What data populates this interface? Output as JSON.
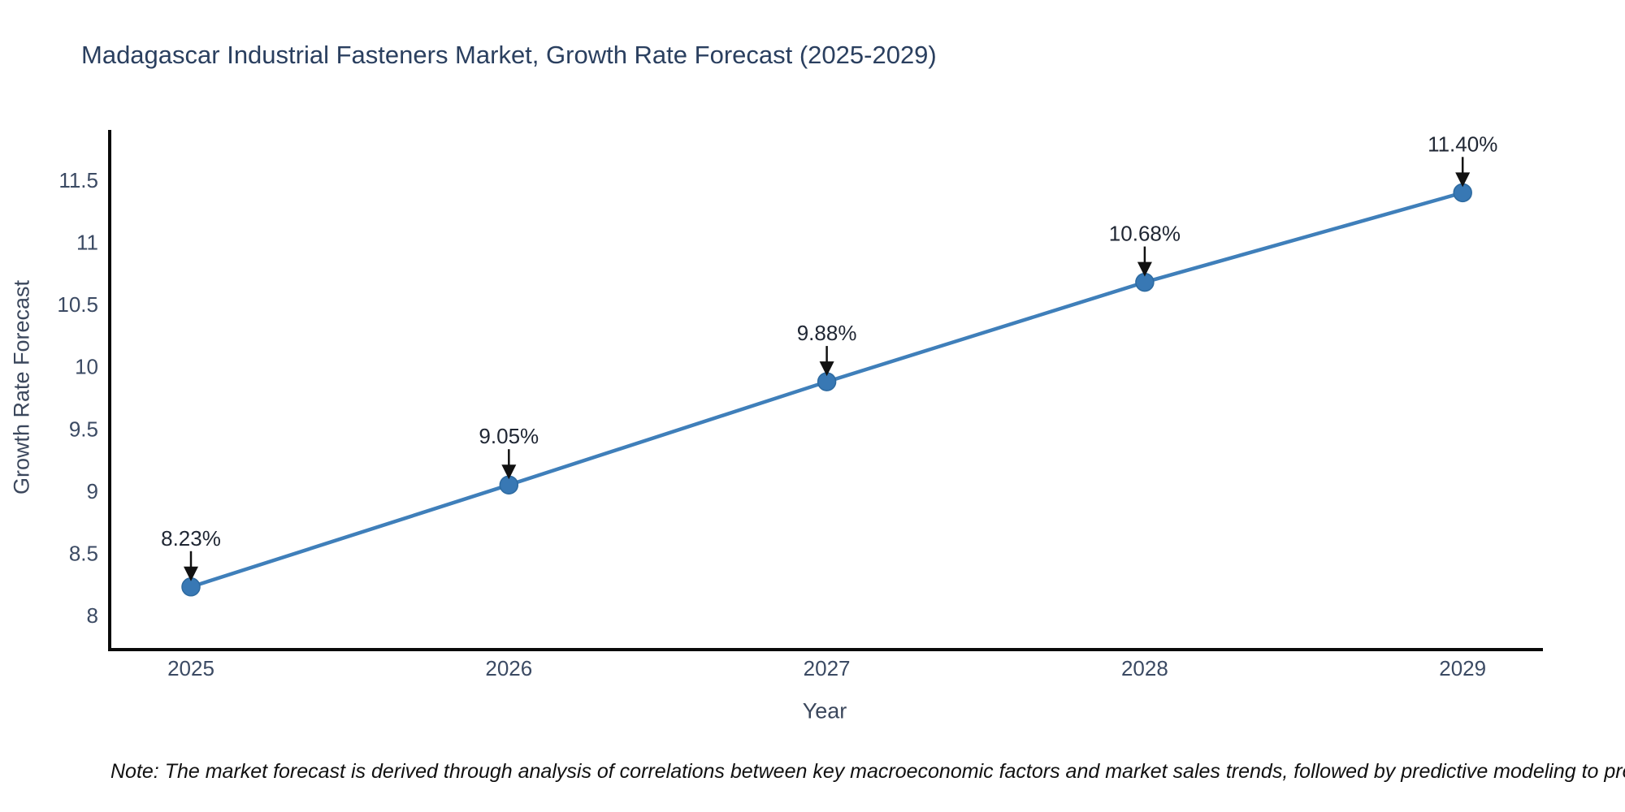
{
  "chart": {
    "title": "Madagascar Industrial Fasteners Market, Growth Rate Forecast (2025-2029)",
    "xlabel": "Year",
    "ylabel": "Growth Rate Forecast",
    "note": "Note: The market forecast is derived through analysis of correlations between key macroeconomic factors and market sales trends, followed by predictive modeling to project future sal"
  },
  "chart_data": {
    "type": "line",
    "title": "Madagascar Industrial Fasteners Market, Growth Rate Forecast (2025-2029)",
    "xlabel": "Year",
    "ylabel": "Growth Rate Forecast",
    "categories": [
      "2025",
      "2026",
      "2027",
      "2028",
      "2029"
    ],
    "values": [
      8.23,
      9.05,
      9.88,
      10.68,
      11.4
    ],
    "point_labels": [
      "8.23%",
      "9.05%",
      "9.88%",
      "10.68%",
      "11.40%"
    ],
    "yticks": [
      {
        "value": 11.5,
        "label": "11.5"
      },
      {
        "value": 11,
        "label": "11"
      },
      {
        "value": 10.5,
        "label": "10.5"
      },
      {
        "value": 10,
        "label": "10"
      },
      {
        "value": 9.5,
        "label": "9.5"
      },
      {
        "value": 9,
        "label": "9"
      },
      {
        "value": 8.5,
        "label": "8.5"
      },
      {
        "value": 8,
        "label": "8"
      }
    ],
    "ylim": [
      7.7,
      11.9
    ],
    "grid": false,
    "legend": "none",
    "line_color": "#3f7fba",
    "marker_color": "#3878b4",
    "marker_edge_color": "#2d6aa0",
    "annotation_arrow_color": "#111111",
    "spine_color": "#0a0a0a"
  }
}
